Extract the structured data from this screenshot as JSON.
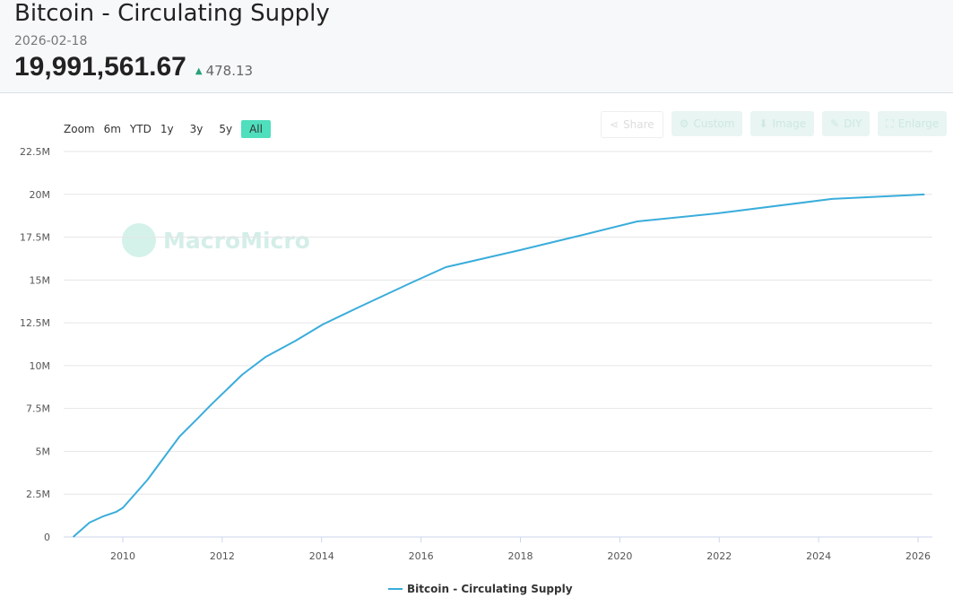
{
  "header": {
    "title": "Bitcoin - Circulating Supply",
    "date": "2026-02-18",
    "value": "19,991,561.67",
    "change": "478.13",
    "change_direction": "up"
  },
  "zoom": {
    "label": "Zoom",
    "options": [
      "6m",
      "YTD",
      "1y",
      "3y",
      "5y",
      "All"
    ],
    "active": "All"
  },
  "tools": [
    "Share",
    "Custom",
    "Image",
    "DIY",
    "Enlarge"
  ],
  "watermark": "MacroMicro",
  "colors": {
    "line": "#3aaddb",
    "accent": "#4fdfbd"
  },
  "chart_data": {
    "type": "line",
    "title": "Bitcoin - Circulating Supply",
    "ylabel": "",
    "xlabel": "",
    "ylim": [
      0,
      22500000
    ],
    "xlim": [
      2008.8,
      2026.3
    ],
    "yticks": [
      0,
      2500000,
      5000000,
      7500000,
      10000000,
      12500000,
      15000000,
      17500000,
      20000000,
      22500000
    ],
    "ytick_labels": [
      "0",
      "2.5M",
      "5M",
      "7.5M",
      "10M",
      "12.5M",
      "15M",
      "17.5M",
      "20M",
      "22.5M"
    ],
    "xticks": [
      2010,
      2012,
      2014,
      2016,
      2018,
      2020,
      2022,
      2024,
      2026
    ],
    "xtick_labels": [
      "2010",
      "2012",
      "2014",
      "2016",
      "2018",
      "2020",
      "2022",
      "2024",
      "2026"
    ],
    "grid": true,
    "legend": "bottom",
    "series": [
      {
        "name": "Bitcoin - Circulating Supply",
        "x": [
          2009.0,
          2009.33,
          2009.6,
          2009.87,
          2010.0,
          2010.23,
          2010.5,
          2010.78,
          2011.14,
          2011.5,
          2011.77,
          2012.4,
          2012.87,
          2013.48,
          2014.02,
          2014.74,
          2015.82,
          2016.5,
          2018.0,
          2019.25,
          2020.35,
          2021.96,
          2024.27,
          2026.13
        ],
        "y": [
          0,
          840000,
          1200000,
          1470000,
          1700000,
          2460000,
          3350000,
          4450000,
          5860000,
          6900000,
          7700000,
          9470000,
          10500000,
          11460000,
          12400000,
          13400000,
          14860000,
          15750000,
          16750000,
          17630000,
          18420000,
          18890000,
          19730000,
          19991562
        ]
      }
    ]
  }
}
